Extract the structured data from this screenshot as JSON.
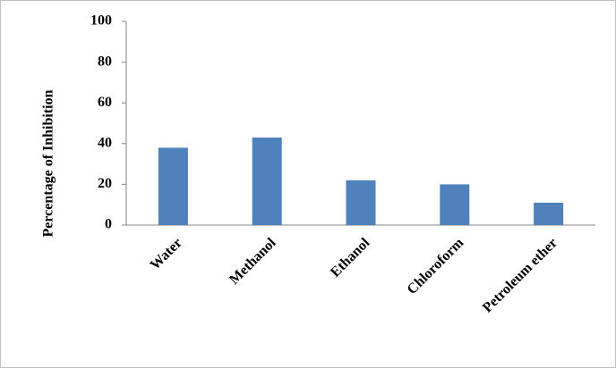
{
  "chart_data": {
    "type": "bar",
    "y_label": "Percentage of Inhibition",
    "categories": [
      "Water",
      "Methanol",
      "Ethanol",
      "Chloroform",
      "Petroleum ether"
    ],
    "values": [
      38,
      43,
      22,
      20,
      11
    ],
    "color": "#4f81bd",
    "ylim": [
      0,
      100
    ],
    "yticks": [
      0,
      20,
      40,
      60,
      80,
      100
    ],
    "grid": false
  }
}
